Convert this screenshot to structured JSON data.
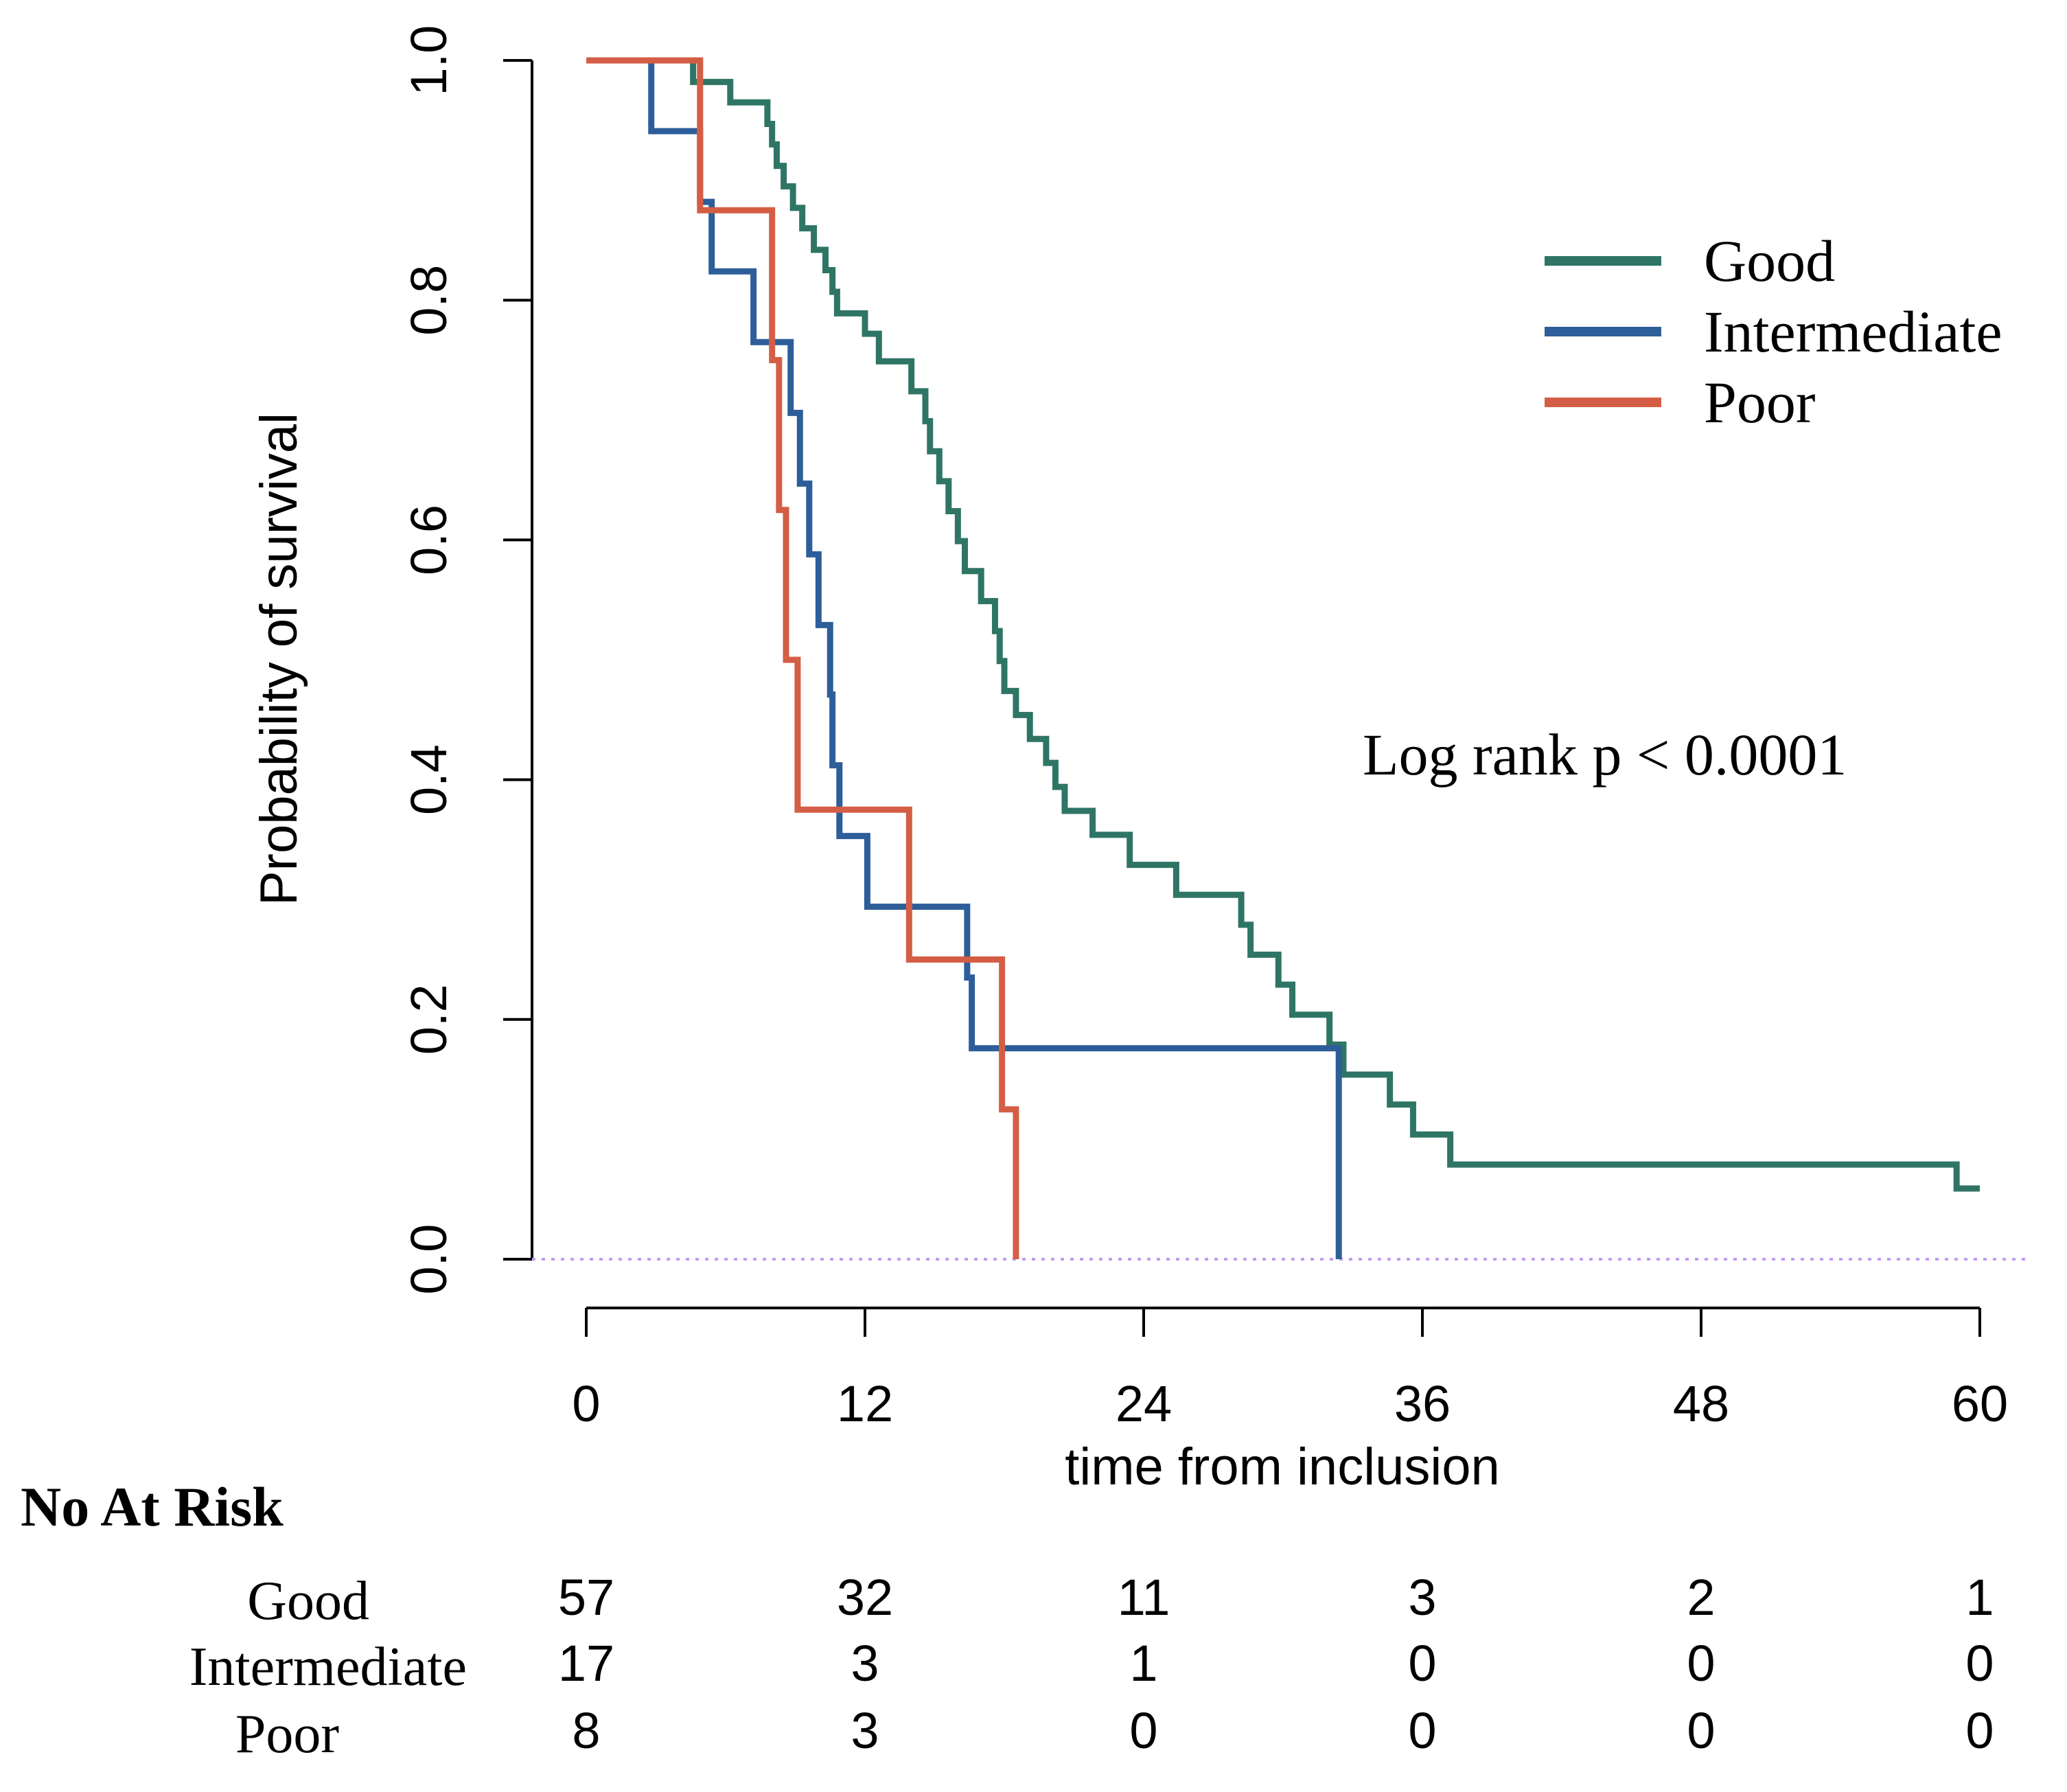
{
  "chart_data": {
    "type": "line",
    "subtype": "kaplan-meier",
    "title": "",
    "xlabel": "time from inclusion",
    "ylabel": "Probability of survival",
    "xlim": [
      0,
      60
    ],
    "ylim": [
      0,
      1
    ],
    "x_ticks": [
      0,
      12,
      24,
      36,
      48,
      60
    ],
    "x_tick_labels": [
      "0",
      "12",
      "24",
      "36",
      "48",
      "60"
    ],
    "y_ticks": [
      0,
      0.2,
      0.4,
      0.6,
      0.8,
      1.0
    ],
    "y_tick_labels": [
      "0.0",
      "0.2",
      "0.4",
      "0.6",
      "0.8",
      "1.0"
    ],
    "grid": false,
    "legend_position": "top-right",
    "annotation": "Log rank p < 0.0001",
    "reference_line": {
      "y": 0,
      "style": "dotted",
      "color": "#c39bf0"
    },
    "series": [
      {
        "name": "Good",
        "color": "#2f7565",
        "x": [
          0,
          4.6,
          6.2,
          7.8,
          8.0,
          8.2,
          8.5,
          8.9,
          9.3,
          9.8,
          10.3,
          10.6,
          10.8,
          12.0,
          12.6,
          14.0,
          14.6,
          14.8,
          15.2,
          15.6,
          16.0,
          16.3,
          17.0,
          17.6,
          17.8,
          18.0,
          18.5,
          19.1,
          19.8,
          20.2,
          20.6,
          21.8,
          23.4,
          25.4,
          28.2,
          28.6,
          29.8,
          30.4,
          32.0,
          32.6,
          34.6,
          35.6,
          37.2,
          59.0,
          60.0
        ],
        "y": [
          1.0,
          0.982,
          0.965,
          0.947,
          0.93,
          0.912,
          0.895,
          0.877,
          0.86,
          0.842,
          0.825,
          0.807,
          0.789,
          0.772,
          0.749,
          0.724,
          0.699,
          0.674,
          0.649,
          0.624,
          0.599,
          0.574,
          0.549,
          0.524,
          0.499,
          0.474,
          0.454,
          0.434,
          0.414,
          0.394,
          0.374,
          0.354,
          0.329,
          0.304,
          0.279,
          0.254,
          0.229,
          0.204,
          0.179,
          0.154,
          0.129,
          0.104,
          0.079,
          0.059,
          0.059
        ],
        "at_risk": [
          57,
          32,
          11,
          3,
          2,
          1
        ]
      },
      {
        "name": "Intermediate",
        "color": "#2d5e99",
        "x": [
          0,
          2.8,
          4.9,
          5.4,
          7.2,
          8.8,
          9.2,
          9.6,
          10.0,
          10.5,
          10.6,
          10.9,
          12.1,
          16.4,
          16.6,
          32.4
        ],
        "y": [
          1.0,
          0.941,
          0.882,
          0.824,
          0.765,
          0.706,
          0.647,
          0.588,
          0.529,
          0.471,
          0.412,
          0.353,
          0.294,
          0.235,
          0.176,
          0.0
        ],
        "at_risk": [
          17,
          3,
          1,
          0,
          0,
          0
        ]
      },
      {
        "name": "Poor",
        "color": "#d45e45",
        "x": [
          0,
          4.9,
          8.0,
          8.3,
          8.6,
          9.1,
          13.9,
          17.9,
          18.5
        ],
        "y": [
          1.0,
          0.875,
          0.75,
          0.625,
          0.5,
          0.375,
          0.25,
          0.125,
          0.0
        ],
        "at_risk": [
          8,
          3,
          0,
          0,
          0,
          0
        ]
      }
    ],
    "risk_table": {
      "title": "No At Risk",
      "rows": [
        "Good",
        "Intermediate",
        "Poor"
      ]
    }
  }
}
